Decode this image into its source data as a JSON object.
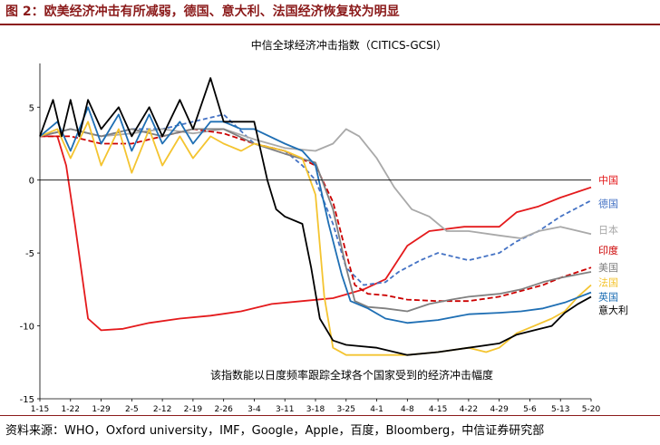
{
  "figure_title": "图 2：欧美经济冲击有所减弱，德国、意大利、法国经济恢复较为明显",
  "source_note": "资料来源：WHO，Oxford university，IMF，Google，Apple，百度，Bloomberg，中信证券研究部",
  "chart_data": {
    "type": "line",
    "title": "中信全球经济冲击指数（CITICS-GCSI）",
    "annotation": "该指数能以日度频率跟踪全球各个国家受到的经济冲击幅度",
    "ylim": [
      -15,
      8
    ],
    "yticks": [
      5,
      0,
      -5,
      -10,
      -15
    ],
    "xlim": [
      1,
      127
    ],
    "xtick_positions": [
      1,
      8,
      15,
      22,
      29,
      36,
      43,
      50,
      57,
      64,
      71,
      78,
      85,
      92,
      99,
      106,
      113,
      120
    ],
    "xtick_labels": [
      "1-15",
      "1-22",
      "1-29",
      "2-5",
      "2-12",
      "2-19",
      "2-26",
      "3-4",
      "3-11",
      "3-18",
      "3-25",
      "4-1",
      "4-8",
      "4-15",
      "4-22",
      "4-29",
      "5-6",
      "5-13"
    ],
    "xtick_last": {
      "x": 127,
      "label": "5-20"
    },
    "series": [
      {
        "name": "中国",
        "color": "#e41a1c",
        "dash": "none",
        "points": [
          [
            1,
            3
          ],
          [
            5,
            3
          ],
          [
            7,
            1
          ],
          [
            9,
            -3
          ],
          [
            12,
            -9.5
          ],
          [
            15,
            -10.3
          ],
          [
            20,
            -10.2
          ],
          [
            26,
            -9.8
          ],
          [
            33,
            -9.5
          ],
          [
            40,
            -9.3
          ],
          [
            47,
            -9
          ],
          [
            54,
            -8.5
          ],
          [
            61,
            -8.3
          ],
          [
            68,
            -8.1
          ],
          [
            75,
            -7.5
          ],
          [
            80,
            -6.8
          ],
          [
            85,
            -4.5
          ],
          [
            90,
            -3.5
          ],
          [
            98,
            -3.2
          ],
          [
            106,
            -3.2
          ],
          [
            110,
            -2.2
          ],
          [
            115,
            -1.8
          ],
          [
            120,
            -1.2
          ],
          [
            127,
            -0.5
          ]
        ]
      },
      {
        "name": "德国",
        "color": "#4472c4",
        "dash": "5,3",
        "points": [
          [
            1,
            3
          ],
          [
            8,
            3.5
          ],
          [
            15,
            3
          ],
          [
            22,
            3.5
          ],
          [
            29,
            3.5
          ],
          [
            36,
            4
          ],
          [
            43,
            4.5
          ],
          [
            50,
            2.5
          ],
          [
            57,
            2
          ],
          [
            61,
            1
          ],
          [
            64,
            0
          ],
          [
            68,
            -3
          ],
          [
            71,
            -6
          ],
          [
            75,
            -7.2
          ],
          [
            80,
            -7
          ],
          [
            83,
            -6.3
          ],
          [
            88,
            -5.5
          ],
          [
            92,
            -5
          ],
          [
            99,
            -5.5
          ],
          [
            106,
            -5
          ],
          [
            110,
            -4.2
          ],
          [
            115,
            -3.5
          ],
          [
            120,
            -2.5
          ],
          [
            127,
            -1.4
          ]
        ]
      },
      {
        "name": "日本",
        "color": "#a9a9a9",
        "dash": "none",
        "points": [
          [
            1,
            3
          ],
          [
            8,
            3.5
          ],
          [
            15,
            3
          ],
          [
            22,
            3.2
          ],
          [
            29,
            3.5
          ],
          [
            36,
            3.2
          ],
          [
            43,
            3.5
          ],
          [
            50,
            2.8
          ],
          [
            57,
            2.2
          ],
          [
            64,
            2
          ],
          [
            68,
            2.5
          ],
          [
            71,
            3.5
          ],
          [
            74,
            3
          ],
          [
            78,
            1.5
          ],
          [
            82,
            -0.5
          ],
          [
            86,
            -2
          ],
          [
            90,
            -2.5
          ],
          [
            94,
            -3.5
          ],
          [
            99,
            -3.5
          ],
          [
            106,
            -3.8
          ],
          [
            111,
            -4
          ],
          [
            115,
            -3.5
          ],
          [
            120,
            -3.2
          ],
          [
            127,
            -3.7
          ]
        ]
      },
      {
        "name": "印度",
        "color": "#cc0000",
        "dash": "6,3",
        "points": [
          [
            1,
            3
          ],
          [
            8,
            3
          ],
          [
            15,
            2.5
          ],
          [
            22,
            2.5
          ],
          [
            29,
            3
          ],
          [
            36,
            3.5
          ],
          [
            43,
            3.2
          ],
          [
            50,
            2.5
          ],
          [
            57,
            2
          ],
          [
            64,
            1
          ],
          [
            68,
            -1.5
          ],
          [
            71,
            -5
          ],
          [
            73,
            -7.2
          ],
          [
            76,
            -7.8
          ],
          [
            80,
            -7.9
          ],
          [
            85,
            -8.2
          ],
          [
            92,
            -8.3
          ],
          [
            99,
            -8.3
          ],
          [
            106,
            -8
          ],
          [
            111,
            -7.6
          ],
          [
            116,
            -7.2
          ],
          [
            120,
            -6.7
          ],
          [
            127,
            -6
          ]
        ]
      },
      {
        "name": "美国",
        "color": "#808080",
        "dash": "none",
        "points": [
          [
            1,
            3
          ],
          [
            8,
            3.5
          ],
          [
            15,
            3
          ],
          [
            22,
            3.5
          ],
          [
            29,
            3
          ],
          [
            36,
            3.5
          ],
          [
            43,
            3.5
          ],
          [
            50,
            2.5
          ],
          [
            57,
            1.8
          ],
          [
            64,
            1.2
          ],
          [
            68,
            -2
          ],
          [
            71,
            -6
          ],
          [
            73,
            -8.3
          ],
          [
            76,
            -8.7
          ],
          [
            80,
            -8.8
          ],
          [
            85,
            -9
          ],
          [
            90,
            -8.5
          ],
          [
            95,
            -8.2
          ],
          [
            99,
            -8
          ],
          [
            106,
            -7.8
          ],
          [
            111,
            -7.5
          ],
          [
            116,
            -7
          ],
          [
            120,
            -6.7
          ],
          [
            127,
            -6.3
          ]
        ]
      },
      {
        "name": "法国",
        "color": "#f4c430",
        "dash": "none",
        "points": [
          [
            1,
            3
          ],
          [
            5,
            3.5
          ],
          [
            8,
            1.5
          ],
          [
            12,
            4
          ],
          [
            15,
            1
          ],
          [
            19,
            3.5
          ],
          [
            22,
            0.5
          ],
          [
            26,
            3.5
          ],
          [
            29,
            1
          ],
          [
            33,
            3
          ],
          [
            36,
            1.5
          ],
          [
            40,
            3
          ],
          [
            43,
            2.5
          ],
          [
            47,
            2
          ],
          [
            50,
            2.5
          ],
          [
            57,
            2
          ],
          [
            61,
            1.5
          ],
          [
            64,
            -1
          ],
          [
            66,
            -8
          ],
          [
            68,
            -11.5
          ],
          [
            71,
            -12
          ],
          [
            78,
            -12
          ],
          [
            85,
            -12
          ],
          [
            92,
            -11.8
          ],
          [
            99,
            -11.5
          ],
          [
            103,
            -11.8
          ],
          [
            106,
            -11.5
          ],
          [
            110,
            -10.5
          ],
          [
            114,
            -10
          ],
          [
            118,
            -9.5
          ],
          [
            121,
            -9
          ],
          [
            124,
            -8
          ],
          [
            127,
            -7.2
          ]
        ]
      },
      {
        "name": "英国",
        "color": "#1f6fb4",
        "dash": "none",
        "points": [
          [
            1,
            3
          ],
          [
            5,
            4
          ],
          [
            8,
            2
          ],
          [
            12,
            5
          ],
          [
            15,
            2.5
          ],
          [
            19,
            4.5
          ],
          [
            22,
            2
          ],
          [
            26,
            4.5
          ],
          [
            29,
            2.5
          ],
          [
            33,
            4
          ],
          [
            36,
            2.5
          ],
          [
            40,
            4
          ],
          [
            43,
            4
          ],
          [
            47,
            3.5
          ],
          [
            50,
            3.5
          ],
          [
            57,
            2.5
          ],
          [
            61,
            2
          ],
          [
            64,
            1
          ],
          [
            67,
            -3
          ],
          [
            70,
            -6.5
          ],
          [
            72,
            -8.3
          ],
          [
            76,
            -8.8
          ],
          [
            80,
            -9.5
          ],
          [
            85,
            -9.8
          ],
          [
            92,
            -9.6
          ],
          [
            99,
            -9.2
          ],
          [
            106,
            -9.1
          ],
          [
            111,
            -9
          ],
          [
            116,
            -8.8
          ],
          [
            121,
            -8.4
          ],
          [
            127,
            -7.7
          ]
        ]
      },
      {
        "name": "意大利",
        "color": "#000000",
        "dash": "none",
        "points": [
          [
            1,
            3
          ],
          [
            4,
            5.5
          ],
          [
            6,
            3
          ],
          [
            8,
            5.5
          ],
          [
            10,
            3
          ],
          [
            12,
            5.5
          ],
          [
            15,
            3.5
          ],
          [
            19,
            5
          ],
          [
            22,
            3
          ],
          [
            26,
            5
          ],
          [
            29,
            3
          ],
          [
            33,
            5.5
          ],
          [
            36,
            3.5
          ],
          [
            40,
            7
          ],
          [
            43,
            4
          ],
          [
            47,
            4
          ],
          [
            50,
            4
          ],
          [
            53,
            0
          ],
          [
            55,
            -2
          ],
          [
            57,
            -2.5
          ],
          [
            61,
            -3
          ],
          [
            63,
            -6
          ],
          [
            65,
            -9.5
          ],
          [
            68,
            -11
          ],
          [
            71,
            -11.3
          ],
          [
            78,
            -11.5
          ],
          [
            85,
            -12
          ],
          [
            92,
            -11.8
          ],
          [
            99,
            -11.5
          ],
          [
            106,
            -11.2
          ],
          [
            110,
            -10.6
          ],
          [
            114,
            -10.3
          ],
          [
            118,
            -10
          ],
          [
            121,
            -9.1
          ],
          [
            124,
            -8.5
          ],
          [
            127,
            -8
          ]
        ]
      }
    ]
  }
}
